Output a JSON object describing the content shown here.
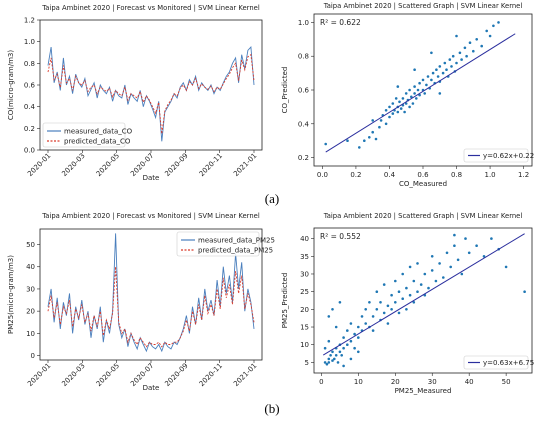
{
  "figure_labels": {
    "a": "(a)",
    "b": "(b)"
  },
  "colors": {
    "measured": "#4a7fbd",
    "predicted": "#d93a2b",
    "scatter": "#1f77b4",
    "fit": "#2b2f9e"
  },
  "chart_data": [
    {
      "id": "co_ts",
      "type": "line",
      "title": "Taipa Ambinet 2020 | Forecast vs Monitored | SVM Linear Kernel",
      "xlabel": "Date",
      "ylabel": "CO(micro-gram/m3)",
      "x_ticks": [
        "2020-01",
        "2020-03",
        "2020-05",
        "2020-07",
        "2020-09",
        "2020-11",
        "2021-01"
      ],
      "ylim": [
        0.0,
        1.2
      ],
      "y_ticks": [
        "0.0",
        "0.2",
        "0.4",
        "0.6",
        "0.8",
        "1.0",
        "1.2"
      ],
      "legend": {
        "placement": "lower-left"
      },
      "series": [
        {
          "name": "measured_data_CO",
          "style": "solid",
          "values": [
            0.78,
            0.95,
            0.62,
            0.72,
            0.55,
            0.85,
            0.6,
            0.68,
            0.52,
            0.7,
            0.62,
            0.58,
            0.66,
            0.5,
            0.56,
            0.62,
            0.48,
            0.6,
            0.55,
            0.52,
            0.58,
            0.45,
            0.55,
            0.5,
            0.48,
            0.6,
            0.42,
            0.52,
            0.48,
            0.45,
            0.55,
            0.4,
            0.5,
            0.45,
            0.38,
            0.3,
            0.45,
            0.08,
            0.35,
            0.4,
            0.45,
            0.52,
            0.48,
            0.58,
            0.62,
            0.55,
            0.65,
            0.6,
            0.68,
            0.55,
            0.62,
            0.58,
            0.55,
            0.6,
            0.52,
            0.58,
            0.55,
            0.62,
            0.68,
            0.72,
            0.8,
            0.85,
            0.62,
            0.88,
            0.75,
            0.92,
            0.95,
            0.6
          ]
        },
        {
          "name": "predicted_data_CO",
          "style": "dashed",
          "values": [
            0.72,
            0.85,
            0.65,
            0.7,
            0.58,
            0.78,
            0.62,
            0.66,
            0.55,
            0.68,
            0.62,
            0.6,
            0.64,
            0.54,
            0.58,
            0.6,
            0.52,
            0.58,
            0.56,
            0.54,
            0.57,
            0.49,
            0.55,
            0.52,
            0.5,
            0.58,
            0.46,
            0.52,
            0.5,
            0.48,
            0.54,
            0.44,
            0.5,
            0.46,
            0.4,
            0.34,
            0.44,
            0.15,
            0.36,
            0.42,
            0.46,
            0.52,
            0.5,
            0.57,
            0.6,
            0.55,
            0.63,
            0.6,
            0.66,
            0.57,
            0.61,
            0.58,
            0.56,
            0.59,
            0.54,
            0.58,
            0.56,
            0.61,
            0.66,
            0.7,
            0.76,
            0.8,
            0.64,
            0.83,
            0.74,
            0.86,
            0.88,
            0.64
          ]
        }
      ]
    },
    {
      "id": "co_sc",
      "type": "scatter",
      "title": "Taipa Ambinet 2020 | Scattered Graph | SVM Linear Kernel",
      "xlabel": "CO_Measured",
      "ylabel": "CO_Predicted",
      "annotation": "R² = 0.622",
      "xlim": [
        -0.05,
        1.25
      ],
      "ylim": [
        0.15,
        1.05
      ],
      "x_ticks": [
        "0.0",
        "0.2",
        "0.4",
        "0.6",
        "0.8",
        "1.0",
        "1.2"
      ],
      "y_ticks": [
        "0.2",
        "0.4",
        "0.6",
        "0.8",
        "1.0"
      ],
      "fit": {
        "label": "y=0.62x+0.22",
        "slope": 0.62,
        "intercept": 0.22,
        "x_range": [
          0.02,
          1.15
        ]
      },
      "legend": {
        "placement": "lower-right"
      },
      "points": [
        [
          0.22,
          0.26
        ],
        [
          0.25,
          0.3
        ],
        [
          0.28,
          0.32
        ],
        [
          0.3,
          0.35
        ],
        [
          0.32,
          0.31
        ],
        [
          0.34,
          0.38
        ],
        [
          0.35,
          0.42
        ],
        [
          0.36,
          0.45
        ],
        [
          0.38,
          0.4
        ],
        [
          0.38,
          0.48
        ],
        [
          0.4,
          0.44
        ],
        [
          0.4,
          0.5
        ],
        [
          0.42,
          0.46
        ],
        [
          0.42,
          0.52
        ],
        [
          0.43,
          0.48
        ],
        [
          0.44,
          0.55
        ],
        [
          0.45,
          0.5
        ],
        [
          0.45,
          0.47
        ],
        [
          0.46,
          0.53
        ],
        [
          0.47,
          0.49
        ],
        [
          0.48,
          0.55
        ],
        [
          0.48,
          0.51
        ],
        [
          0.49,
          0.47
        ],
        [
          0.5,
          0.52
        ],
        [
          0.5,
          0.58
        ],
        [
          0.51,
          0.54
        ],
        [
          0.52,
          0.5
        ],
        [
          0.52,
          0.6
        ],
        [
          0.53,
          0.56
        ],
        [
          0.54,
          0.52
        ],
        [
          0.55,
          0.58
        ],
        [
          0.55,
          0.62
        ],
        [
          0.56,
          0.55
        ],
        [
          0.57,
          0.6
        ],
        [
          0.58,
          0.57
        ],
        [
          0.58,
          0.64
        ],
        [
          0.6,
          0.6
        ],
        [
          0.6,
          0.66
        ],
        [
          0.61,
          0.58
        ],
        [
          0.62,
          0.63
        ],
        [
          0.63,
          0.68
        ],
        [
          0.64,
          0.61
        ],
        [
          0.65,
          0.66
        ],
        [
          0.66,
          0.7
        ],
        [
          0.67,
          0.64
        ],
        [
          0.68,
          0.72
        ],
        [
          0.69,
          0.68
        ],
        [
          0.7,
          0.74
        ],
        [
          0.7,
          0.65
        ],
        [
          0.72,
          0.7
        ],
        [
          0.73,
          0.76
        ],
        [
          0.74,
          0.72
        ],
        [
          0.75,
          0.68
        ],
        [
          0.76,
          0.78
        ],
        [
          0.77,
          0.74
        ],
        [
          0.78,
          0.8
        ],
        [
          0.79,
          0.71
        ],
        [
          0.8,
          0.76
        ],
        [
          0.82,
          0.82
        ],
        [
          0.83,
          0.78
        ],
        [
          0.85,
          0.85
        ],
        [
          0.86,
          0.8
        ],
        [
          0.88,
          0.88
        ],
        [
          0.9,
          0.83
        ],
        [
          0.92,
          0.9
        ],
        [
          0.95,
          0.86
        ],
        [
          0.98,
          0.95
        ],
        [
          1.0,
          0.92
        ],
        [
          1.02,
          0.98
        ],
        [
          1.05,
          1.0
        ],
        [
          0.3,
          0.42
        ],
        [
          0.55,
          0.72
        ],
        [
          0.65,
          0.82
        ],
        [
          0.45,
          0.62
        ],
        [
          0.8,
          0.92
        ],
        [
          0.7,
          0.58
        ],
        [
          0.15,
          0.3
        ],
        [
          0.02,
          0.28
        ]
      ]
    },
    {
      "id": "pm_ts",
      "type": "line",
      "title": "Taipa Ambient 2020 | Forecast vs Monitored | SVM Linear Kernel",
      "xlabel": "Date",
      "ylabel": "PM25(micro-gram/m3)",
      "x_ticks": [
        "2020-01",
        "2020-03",
        "2020-05",
        "2020-07",
        "2020-09",
        "2020-11",
        "2021-01"
      ],
      "ylim": [
        -2,
        57
      ],
      "y_ticks": [
        "0",
        "10",
        "20",
        "30",
        "40",
        "50"
      ],
      "legend": {
        "placement": "top-right"
      },
      "series": [
        {
          "name": "measured_data_PM25",
          "style": "solid",
          "values": [
            22,
            30,
            15,
            26,
            12,
            24,
            18,
            28,
            10,
            22,
            16,
            25,
            14,
            20,
            8,
            18,
            12,
            22,
            6,
            16,
            10,
            20,
            55,
            14,
            8,
            12,
            4,
            10,
            6,
            3,
            8,
            5,
            2,
            6,
            4,
            3,
            5,
            2,
            6,
            4,
            3,
            6,
            5,
            8,
            12,
            18,
            10,
            22,
            14,
            26,
            16,
            30,
            20,
            25,
            18,
            34,
            22,
            40,
            28,
            36,
            24,
            46,
            30,
            42,
            20,
            30,
            24,
            12
          ]
        },
        {
          "name": "predicted_data_PM25",
          "style": "dashed",
          "values": [
            20,
            27,
            17,
            24,
            14,
            22,
            19,
            25,
            13,
            21,
            17,
            23,
            15,
            19,
            11,
            18,
            13,
            20,
            9,
            16,
            12,
            19,
            40,
            15,
            10,
            12,
            6,
            10,
            7,
            5,
            8,
            6,
            4,
            6,
            5,
            5,
            6,
            4,
            6,
            5,
            5,
            6,
            6,
            8,
            11,
            16,
            11,
            20,
            14,
            23,
            16,
            27,
            19,
            23,
            18,
            30,
            21,
            35,
            26,
            32,
            23,
            38,
            28,
            36,
            21,
            28,
            23,
            15
          ]
        }
      ]
    },
    {
      "id": "pm_sc",
      "type": "scatter",
      "title": "Taipa Ambient 2020 | Scattered Graph | SVM Linear Kernel",
      "xlabel": "PM25_Measured",
      "ylabel": "PM25_Predicted",
      "annotation": "R² = 0.552",
      "xlim": [
        -2,
        57
      ],
      "ylim": [
        2,
        43
      ],
      "x_ticks": [
        "0",
        "10",
        "20",
        "30",
        "40",
        "50"
      ],
      "y_ticks": [
        "5",
        "10",
        "15",
        "20",
        "25",
        "30",
        "35",
        "40"
      ],
      "fit": {
        "label": "y=0.63x+6.75",
        "slope": 0.63,
        "intercept": 6.75,
        "x_range": [
          0.5,
          55
        ]
      },
      "legend": {
        "placement": "lower-right"
      },
      "points": [
        [
          1,
          5
        ],
        [
          1.5,
          4.5
        ],
        [
          2,
          6
        ],
        [
          2,
          5
        ],
        [
          2.5,
          7
        ],
        [
          3,
          5.5
        ],
        [
          3,
          8
        ],
        [
          3.5,
          6
        ],
        [
          4,
          7
        ],
        [
          4,
          9
        ],
        [
          4.5,
          5
        ],
        [
          5,
          8
        ],
        [
          5,
          10
        ],
        [
          5.5,
          7
        ],
        [
          6,
          12
        ],
        [
          6,
          9
        ],
        [
          7,
          10
        ],
        [
          7,
          14
        ],
        [
          8,
          11
        ],
        [
          8,
          16
        ],
        [
          9,
          13
        ],
        [
          9,
          9
        ],
        [
          10,
          15
        ],
        [
          10,
          12
        ],
        [
          11,
          18
        ],
        [
          11,
          14
        ],
        [
          12,
          16
        ],
        [
          12,
          20
        ],
        [
          13,
          15
        ],
        [
          13,
          22
        ],
        [
          14,
          18
        ],
        [
          14,
          14
        ],
        [
          15,
          20
        ],
        [
          15,
          25
        ],
        [
          16,
          17
        ],
        [
          16,
          22
        ],
        [
          17,
          19
        ],
        [
          17,
          27
        ],
        [
          18,
          21
        ],
        [
          18,
          16
        ],
        [
          19,
          24
        ],
        [
          19,
          20
        ],
        [
          20,
          22
        ],
        [
          20,
          28
        ],
        [
          21,
          19
        ],
        [
          21,
          25
        ],
        [
          22,
          23
        ],
        [
          22,
          30
        ],
        [
          23,
          26
        ],
        [
          23,
          20
        ],
        [
          24,
          24
        ],
        [
          24,
          32
        ],
        [
          25,
          22
        ],
        [
          25,
          28
        ],
        [
          26,
          25
        ],
        [
          26,
          33
        ],
        [
          27,
          27
        ],
        [
          28,
          30
        ],
        [
          28,
          24
        ],
        [
          29,
          26
        ],
        [
          30,
          31
        ],
        [
          30,
          35
        ],
        [
          31,
          28
        ],
        [
          32,
          33
        ],
        [
          33,
          29
        ],
        [
          34,
          36
        ],
        [
          35,
          32
        ],
        [
          36,
          38
        ],
        [
          37,
          34
        ],
        [
          38,
          30
        ],
        [
          40,
          36
        ],
        [
          42,
          38
        ],
        [
          44,
          35
        ],
        [
          46,
          40
        ],
        [
          48,
          37
        ],
        [
          50,
          32
        ],
        [
          55,
          25
        ],
        [
          3,
          20
        ],
        [
          2,
          18
        ],
        [
          5,
          22
        ],
        [
          4,
          15
        ],
        [
          2,
          11
        ],
        [
          1,
          9
        ],
        [
          6,
          4
        ],
        [
          8,
          6
        ],
        [
          10,
          8
        ],
        [
          36,
          41
        ],
        [
          39,
          40
        ]
      ]
    }
  ]
}
